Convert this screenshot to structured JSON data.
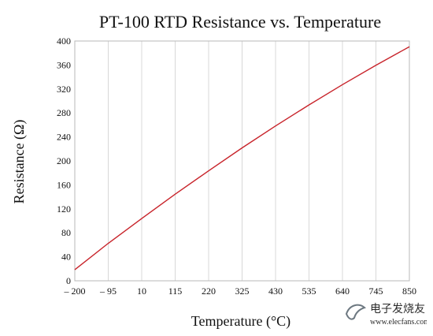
{
  "chart_data": {
    "type": "line",
    "title": "PT-100 RTD Resistance vs. Temperature",
    "xlabel": "Temperature (°C)",
    "ylabel": "Resistance (Ω)",
    "xlim": [
      -200,
      850
    ],
    "ylim": [
      0,
      400
    ],
    "x_ticks": [
      "– 200",
      "– 95",
      "10",
      "115",
      "220",
      "325",
      "430",
      "535",
      "640",
      "745",
      "850"
    ],
    "x_tick_values": [
      -200,
      -95,
      10,
      115,
      220,
      325,
      430,
      535,
      640,
      745,
      850
    ],
    "y_ticks": [
      "0",
      "40",
      "80",
      "120",
      "160",
      "200",
      "240",
      "280",
      "320",
      "360",
      "400"
    ],
    "y_tick_values": [
      0,
      40,
      80,
      120,
      160,
      200,
      240,
      280,
      320,
      360,
      400
    ],
    "grid": "vertical",
    "series": [
      {
        "color": "#c8242b",
        "x": [
          -200,
          -95,
          10,
          115,
          220,
          325,
          430,
          535,
          640,
          745,
          850
        ],
        "y": [
          18.5,
          62.5,
          103.9,
          144.5,
          183.5,
          221.7,
          258.3,
          293.4,
          327.2,
          359.5,
          390.5
        ]
      }
    ]
  },
  "watermark": {
    "brand_text": "电子发烧友",
    "url_text": "www.elecfans.com",
    "color": "#5e6a74"
  }
}
